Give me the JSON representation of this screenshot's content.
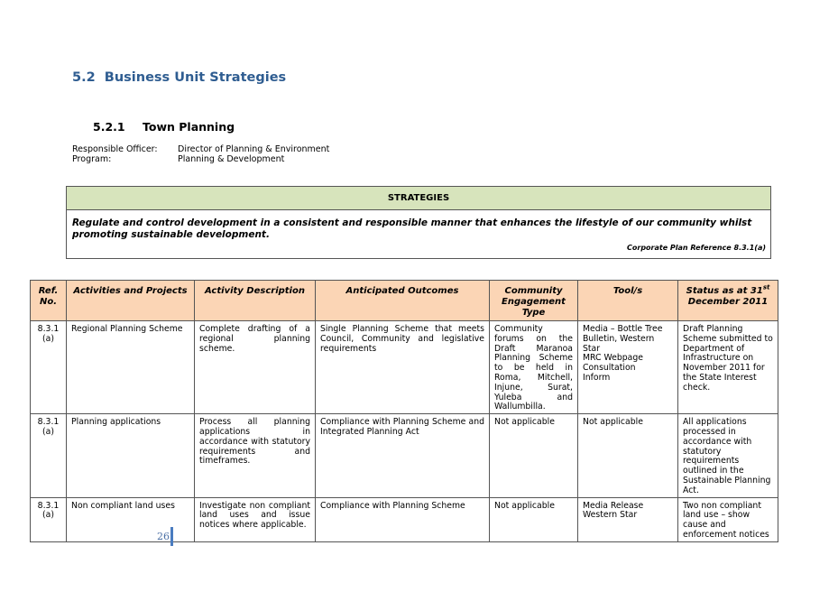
{
  "section": {
    "title": "5.2  Business Unit Strategies"
  },
  "subsection": {
    "number": "5.2.1",
    "title": "Town Planning"
  },
  "info": {
    "officer_label": "Responsible Officer:",
    "officer": "Director of Planning & Environment",
    "program_label": "Program:",
    "program": "Planning & Development"
  },
  "strategies": {
    "header": "STRATEGIES",
    "text": "Regulate and control development in a consistent and responsible manner that enhances the lifestyle of our community whilst promoting sustainable development.",
    "reference": "Corporate Plan Reference 8.3.1(a)"
  },
  "table": {
    "headers": [
      "Ref. No.",
      "Activities and Projects",
      "Activity Description",
      "Anticipated Outcomes",
      "Community Engagement Type",
      "Tool/s"
    ],
    "status_header": {
      "text": "Status as at 31",
      "sup": "st",
      "text2": "December 2011"
    },
    "rows": [
      [
        "8.3.1 (a)",
        "Regional Planning Scheme",
        "Complete drafting of a regional planning scheme.",
        "Single Planning Scheme that meets Council, Community and legislative requirements",
        "Community forums on the Draft Maranoa Planning Scheme to be held in Roma, Mitchell, Injune, Surat, Yuleba and Wallumbilla.",
        [
          "Media – Bottle Tree Bulletin, Western Star",
          "MRC Webpage",
          "Consultation",
          "Inform"
        ],
        "Draft Planning Scheme submitted to Department of Infrastructure on November 2011 for the State Interest check."
      ],
      [
        "8.3.1 (a)",
        "Planning applications",
        "Process all planning applications in accordance with statutory requirements and timeframes.",
        "Compliance with Planning Scheme and Integrated Planning Act",
        "Not applicable",
        [
          "Not applicable"
        ],
        "All applications processed in accordance with statutory requirements outlined in the Sustainable Planning Act."
      ],
      [
        "8.3.1 (a)",
        "Non compliant land uses",
        "Investigate non compliant land uses and issue notices where applicable.",
        "Compliance with Planning Scheme",
        "Not applicable",
        [
          "Media Release",
          "Western Star"
        ],
        "Two non compliant land use – show cause and enforcement notices"
      ]
    ]
  },
  "footer": {
    "page_number": "26"
  }
}
